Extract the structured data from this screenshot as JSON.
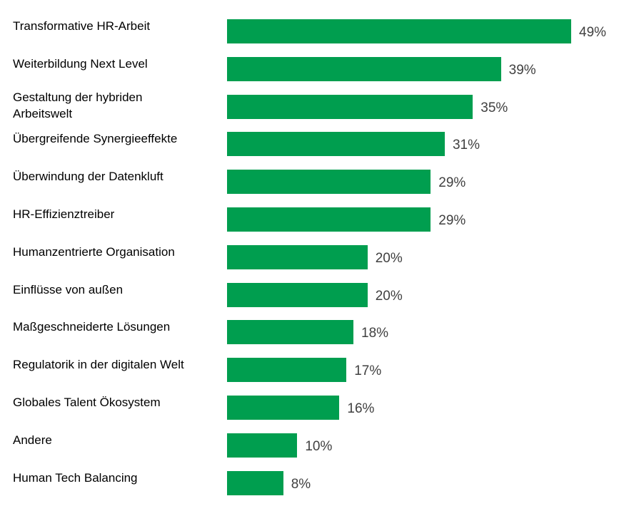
{
  "chart_data": {
    "type": "bar",
    "orientation": "horizontal",
    "categories": [
      "Transformative HR-Arbeit",
      "Weiterbildung Next Level",
      "Gestaltung der hybriden\nArbeitswelt",
      "Übergreifende Synergieeffekte",
      "Überwindung der Datenkluft",
      "HR-Effizienztreiber",
      "Humanzentrierte Organisation",
      "Einflüsse von außen",
      "Maßgeschneiderte Lösungen",
      "Regulatorik in der digitalen Welt",
      "Globales Talent Ökosystem",
      "Andere",
      "Human Tech Balancing"
    ],
    "values": [
      49,
      39,
      35,
      31,
      29,
      29,
      20,
      20,
      18,
      17,
      16,
      10,
      8
    ],
    "value_labels": [
      "49%",
      "39%",
      "35%",
      "31%",
      "29%",
      "29%",
      "20%",
      "20%",
      "18%",
      "17%",
      "16%",
      "10%",
      "8%"
    ],
    "unit": "%",
    "xlim": [
      0,
      49
    ],
    "grid": false,
    "bar_color": "#009E4F",
    "label_color": "#404040"
  }
}
